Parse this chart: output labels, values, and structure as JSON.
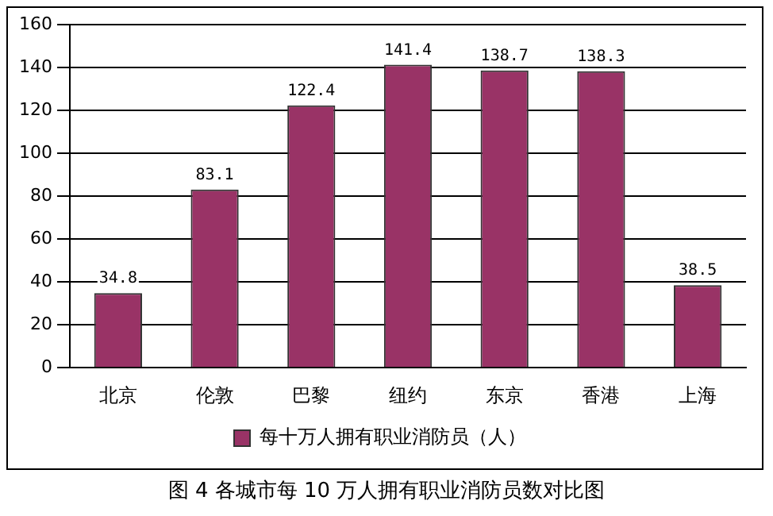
{
  "chart_data": {
    "type": "bar",
    "title": "图 4 各城市每 10 万人拥有职业消防员数对比图",
    "categories": [
      "北京",
      "伦敦",
      "巴黎",
      "纽约",
      "东京",
      "香港",
      "上海"
    ],
    "series": [
      {
        "name": "每十万人拥有职业消防员（人）",
        "color": "#993366",
        "values": [
          34.8,
          83.1,
          122.4,
          141.4,
          138.7,
          138.3,
          38.5
        ]
      }
    ],
    "ylim": [
      0,
      160
    ],
    "yticks": [
      0,
      20,
      40,
      60,
      80,
      100,
      120,
      140,
      160
    ],
    "grid": "y",
    "legend": "bottom",
    "data_labels": true
  }
}
